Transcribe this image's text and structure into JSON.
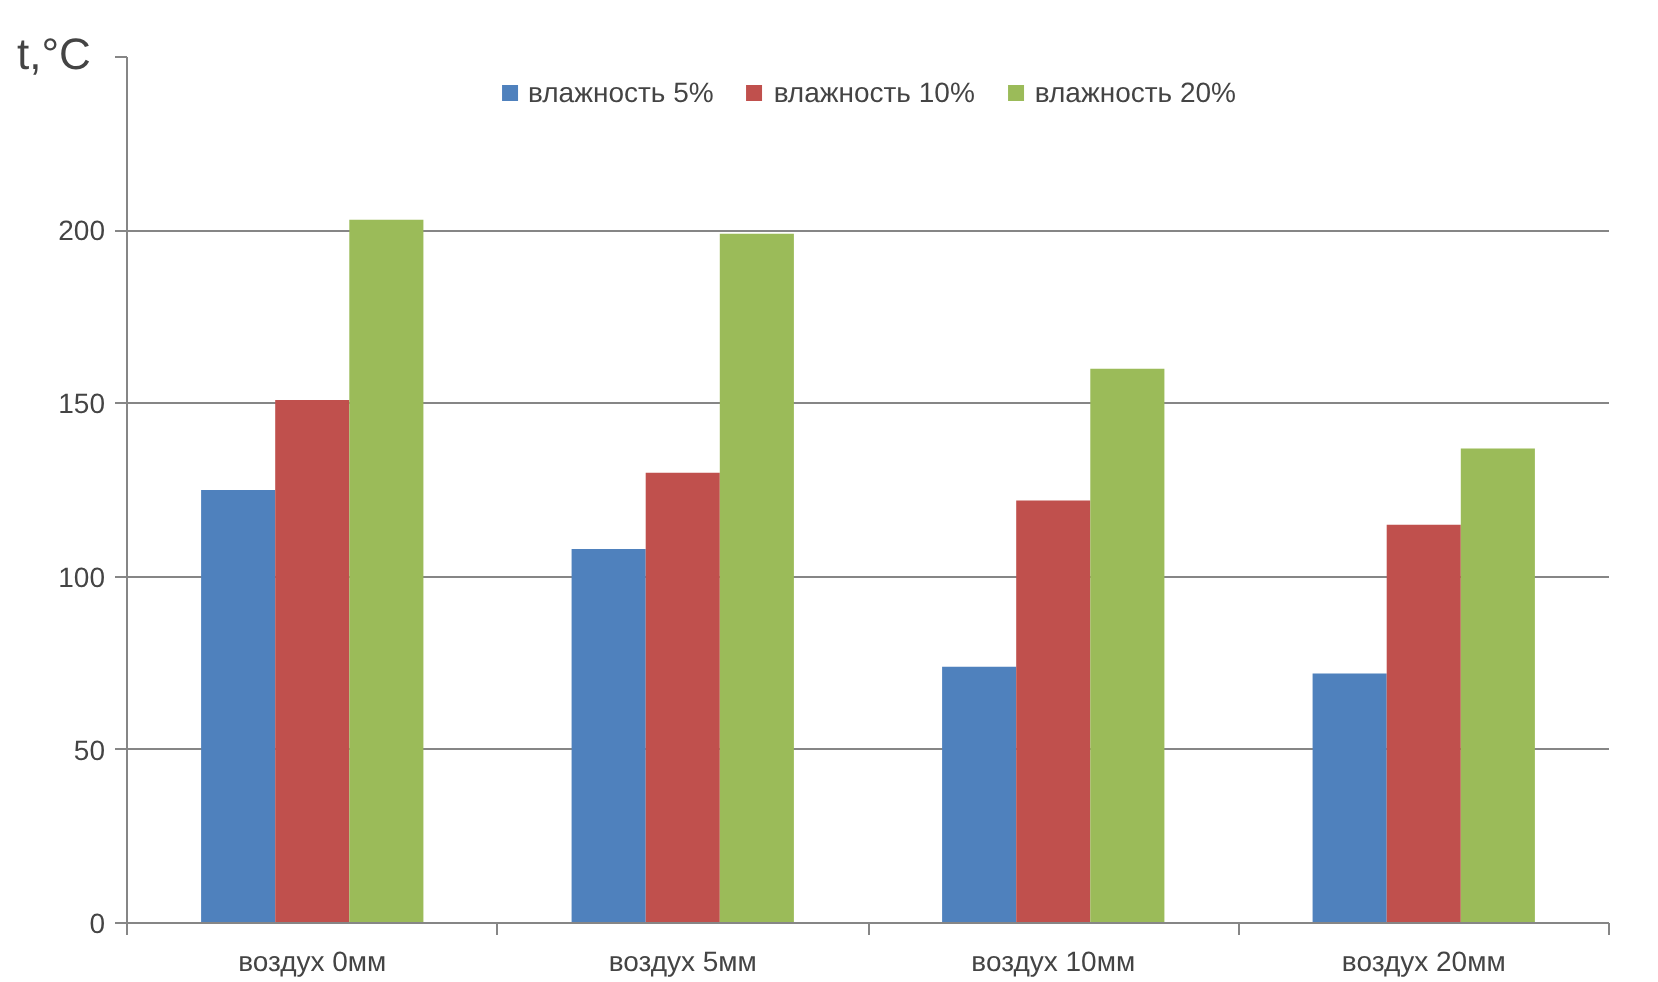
{
  "chart_data": {
    "type": "bar",
    "ylabel": "t,°C",
    "categories": [
      "воздух 0мм",
      "воздух 5мм",
      "воздух 10мм",
      "воздух 20мм"
    ],
    "series": [
      {
        "name": "влажность 5%",
        "color": "#4f81bd",
        "values": [
          125,
          108,
          74,
          72
        ]
      },
      {
        "name": "влажность 10%",
        "color": "#c0504d",
        "values": [
          151,
          130,
          122,
          115
        ]
      },
      {
        "name": "влажность 20%",
        "color": "#9bbb59",
        "values": [
          203,
          199,
          160,
          137
        ]
      }
    ],
    "ylim": [
      0,
      250
    ],
    "yticks": [
      0,
      50,
      100,
      150,
      200,
      {
        "value": 250,
        "label": null
      }
    ],
    "grid": "y",
    "legend": "top"
  }
}
